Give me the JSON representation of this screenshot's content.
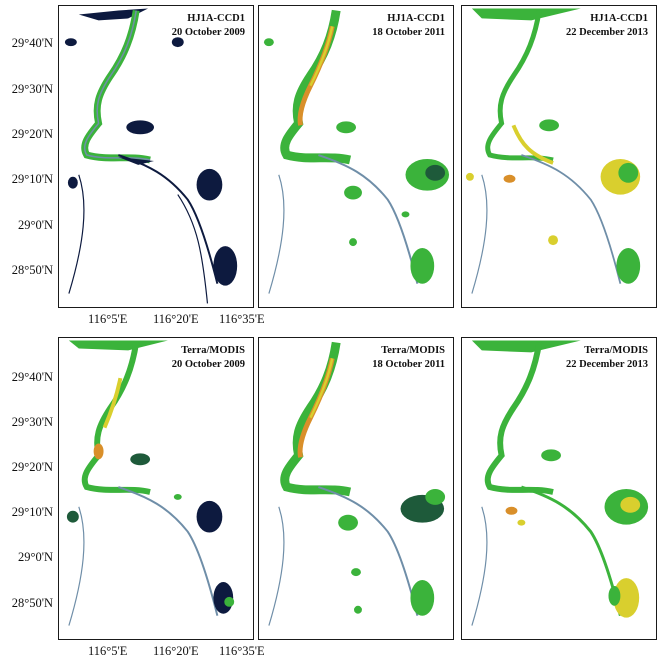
{
  "panels": [
    {
      "sensor": "HJ1A-CCD1",
      "date": "20 October 2009"
    },
    {
      "sensor": "HJ1A-CCD1",
      "date": "18 October 2011"
    },
    {
      "sensor": "HJ1A-CCD1",
      "date": "22 December 2013"
    },
    {
      "sensor": "Terra/MODIS",
      "date": "20 October 2009"
    },
    {
      "sensor": "Terra/MODIS",
      "date": "18 October 2011"
    },
    {
      "sensor": "Terra/MODIS",
      "date": "22 December 2013"
    }
  ],
  "lat_labels": [
    "29°40'N",
    "29°30'N",
    "29°20'N",
    "29°10'N",
    "29°0'N",
    "28°50'N"
  ],
  "lon_labels": [
    "116°5'E",
    "116°20'E",
    "116°35'E"
  ],
  "colors": {
    "water": "#0d1a3f",
    "river": "#6f8ea8",
    "green": "#3bb33b",
    "yellow": "#d9cf2e",
    "orange": "#d98f2a",
    "dark_green": "#1e5a3a"
  }
}
